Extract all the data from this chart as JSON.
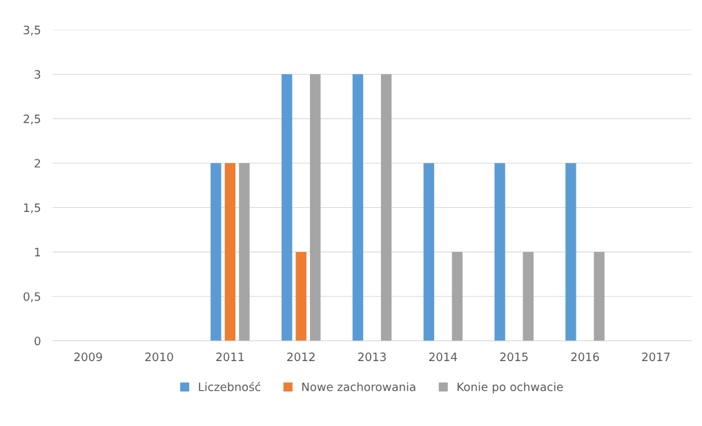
{
  "chart_data": {
    "type": "bar",
    "categories": [
      "2009",
      "2010",
      "2011",
      "2012",
      "2013",
      "2014",
      "2015",
      "2016",
      "2017"
    ],
    "series": [
      {
        "name": "Liczebność",
        "color": "#5b9bd5",
        "values": [
          0,
          0,
          2,
          3,
          3,
          2,
          2,
          2,
          0
        ]
      },
      {
        "name": "Nowe zachorowania",
        "color": "#ed7d31",
        "values": [
          0,
          0,
          2,
          1,
          0,
          0,
          0,
          0,
          0
        ]
      },
      {
        "name": "Konie po ochwacie",
        "color": "#a5a5a5",
        "values": [
          0,
          0,
          2,
          3,
          3,
          1,
          1,
          1,
          0
        ]
      }
    ],
    "ylim": [
      0,
      3.5
    ],
    "yticks": [
      {
        "value": 0,
        "label": "0"
      },
      {
        "value": 0.5,
        "label": "0,5"
      },
      {
        "value": 1,
        "label": "1"
      },
      {
        "value": 1.5,
        "label": "1,5"
      },
      {
        "value": 2,
        "label": "2"
      },
      {
        "value": 2.5,
        "label": "2,5"
      },
      {
        "value": 3,
        "label": "3"
      },
      {
        "value": 3.5,
        "label": "3,5"
      }
    ],
    "grid": "y",
    "legend": "bottom"
  }
}
